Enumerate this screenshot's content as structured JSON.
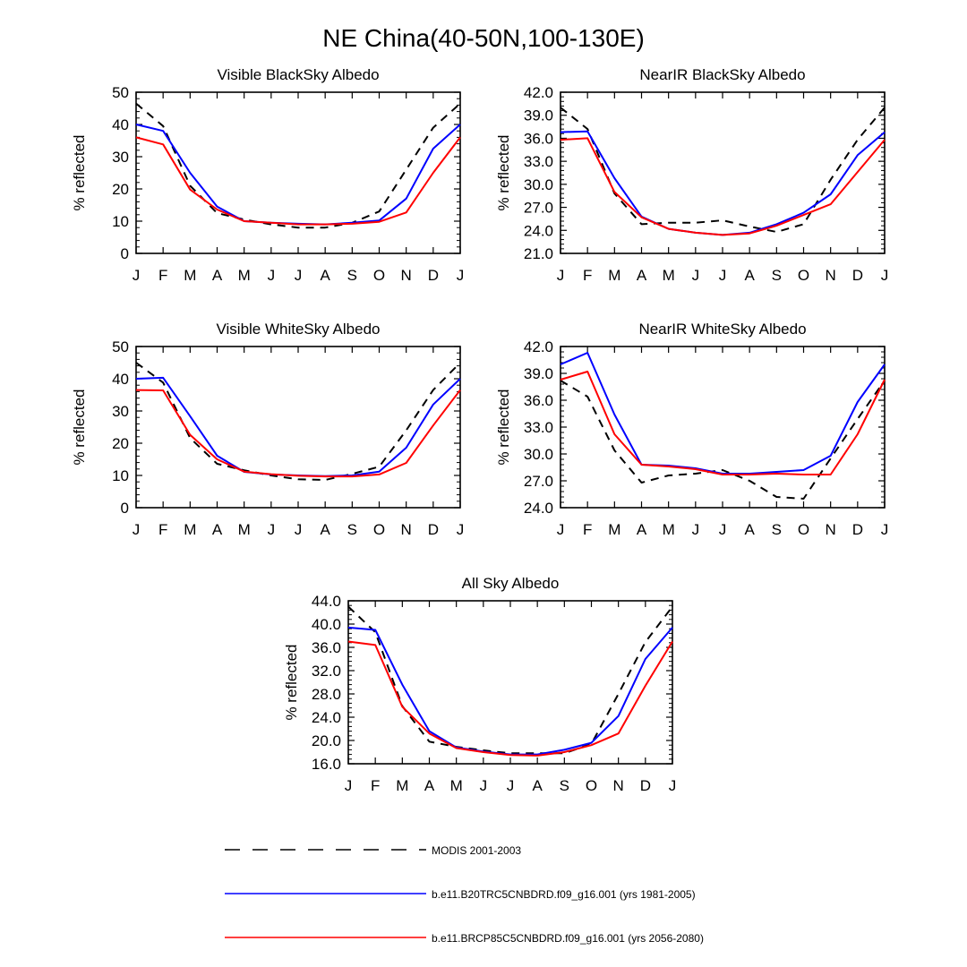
{
  "figure_title": "NE China(40-50N,100-130E)",
  "colors": {
    "modis": "#000000",
    "b20tr": "#0000ff",
    "brcp85": "#ff0000"
  },
  "legend": [
    {
      "label": "MODIS 2001-2003",
      "style": "dashed",
      "color": "#000000"
    },
    {
      "label": "b.e11.B20TRC5CNBDRD.f09_g16.001 (yrs 1981-2005)",
      "style": "solid",
      "color": "#0000ff"
    },
    {
      "label": "b.e11.BRCP85C5CNBDRD.f09_g16.001 (yrs 2056-2080)",
      "style": "solid",
      "color": "#ff0000"
    }
  ],
  "chart_data": [
    {
      "type": "line",
      "title": "Visible BlackSky Albedo",
      "xlabel": "",
      "ylabel": "% reflected",
      "categories": [
        "J",
        "F",
        "M",
        "A",
        "M",
        "J",
        "J",
        "A",
        "S",
        "O",
        "N",
        "D",
        "J"
      ],
      "ylim": [
        0,
        50
      ],
      "yticks": [
        "0",
        "10",
        "20",
        "30",
        "40",
        "50"
      ],
      "series": [
        {
          "name": "MODIS 2001-2003",
          "values": [
            46.5,
            39.5,
            21.0,
            12.5,
            10.5,
            9.0,
            8.0,
            8.0,
            9.5,
            13.0,
            26.0,
            39.0,
            46.5
          ]
        },
        {
          "name": "b.e11.B20TRC5CNBDRD.f09_g16.001 (yrs 1981-2005)",
          "values": [
            40.0,
            38.0,
            25.0,
            14.5,
            10.0,
            9.5,
            9.2,
            9.0,
            9.5,
            10.2,
            17.0,
            32.5,
            40.0
          ]
        },
        {
          "name": "b.e11.BRCP85C5CNBDRD.f09_g16.001 (yrs 2056-2080)",
          "values": [
            36.0,
            33.8,
            19.8,
            13.6,
            10.0,
            9.5,
            9.0,
            9.0,
            9.2,
            9.8,
            12.7,
            25.0,
            36.0
          ]
        }
      ]
    },
    {
      "type": "line",
      "title": "NearIR BlackSky Albedo",
      "xlabel": "",
      "ylabel": "% reflected",
      "categories": [
        "J",
        "F",
        "M",
        "A",
        "M",
        "J",
        "J",
        "A",
        "S",
        "O",
        "N",
        "D",
        "J"
      ],
      "ylim": [
        21,
        42
      ],
      "yticks": [
        "21.0",
        "24.0",
        "27.0",
        "30.0",
        "33.0",
        "36.0",
        "39.0",
        "42.0"
      ],
      "series": [
        {
          "name": "MODIS 2001-2003",
          "values": [
            40.0,
            37.2,
            28.8,
            24.8,
            25.0,
            25.0,
            25.3,
            24.5,
            23.8,
            24.8,
            30.6,
            35.8,
            40.0
          ]
        },
        {
          "name": "b.e11.B20TRC5CNBDRD.f09_g16.001 (yrs 1981-2005)",
          "values": [
            36.8,
            36.9,
            30.8,
            25.8,
            24.2,
            23.7,
            23.4,
            23.7,
            24.8,
            26.3,
            28.7,
            33.8,
            36.8
          ]
        },
        {
          "name": "b.e11.BRCP85C5CNBDRD.f09_g16.001 (yrs 2056-2080)",
          "values": [
            35.8,
            36.0,
            29.0,
            25.7,
            24.2,
            23.7,
            23.4,
            23.6,
            24.6,
            26.0,
            27.4,
            31.6,
            35.8
          ]
        }
      ]
    },
    {
      "type": "line",
      "title": "Visible WhiteSky Albedo",
      "xlabel": "",
      "ylabel": "% reflected",
      "categories": [
        "J",
        "F",
        "M",
        "A",
        "M",
        "J",
        "J",
        "A",
        "S",
        "O",
        "N",
        "D",
        "J"
      ],
      "ylim": [
        0,
        50
      ],
      "yticks": [
        "0",
        "10",
        "20",
        "30",
        "40",
        "50"
      ],
      "series": [
        {
          "name": "MODIS 2001-2003",
          "values": [
            45.0,
            38.8,
            21.6,
            13.6,
            11.6,
            10.0,
            8.8,
            8.6,
            10.5,
            12.7,
            24.0,
            36.5,
            45.0
          ]
        },
        {
          "name": "b.e11.B20TRC5CNBDRD.f09_g16.001 (yrs 1981-2005)",
          "values": [
            40.0,
            40.3,
            28.4,
            16.1,
            11.1,
            10.3,
            10.0,
            9.8,
            10.0,
            11.2,
            18.6,
            32.0,
            40.0
          ]
        },
        {
          "name": "b.e11.BRCP85C5CNBDRD.f09_g16.001 (yrs 2056-2080)",
          "values": [
            36.5,
            36.4,
            22.6,
            15.0,
            11.2,
            10.4,
            9.9,
            9.7,
            9.7,
            10.3,
            13.9,
            25.5,
            36.5
          ]
        }
      ]
    },
    {
      "type": "line",
      "title": "NearIR WhiteSky Albedo",
      "xlabel": "",
      "ylabel": "% reflected",
      "categories": [
        "J",
        "F",
        "M",
        "A",
        "M",
        "J",
        "J",
        "A",
        "S",
        "O",
        "N",
        "D",
        "J"
      ],
      "ylim": [
        24,
        42
      ],
      "yticks": [
        "24.0",
        "27.0",
        "30.0",
        "33.0",
        "36.0",
        "39.0",
        "42.0"
      ],
      "series": [
        {
          "name": "MODIS 2001-2003",
          "values": [
            38.2,
            36.4,
            30.4,
            26.8,
            27.6,
            27.8,
            28.2,
            27.0,
            25.2,
            25.0,
            29.5,
            33.9,
            38.2
          ]
        },
        {
          "name": "b.e11.B20TRC5CNBDRD.f09_g16.001 (yrs 1981-2005)",
          "values": [
            40.0,
            41.3,
            34.4,
            28.8,
            28.7,
            28.4,
            27.8,
            27.8,
            28.0,
            28.2,
            29.8,
            35.8,
            40.0
          ]
        },
        {
          "name": "b.e11.BRCP85C5CNBDRD.f09_g16.001 (yrs 2056-2080)",
          "values": [
            38.3,
            39.2,
            32.2,
            28.8,
            28.6,
            28.3,
            27.7,
            27.7,
            27.8,
            27.7,
            27.7,
            32.2,
            38.3
          ]
        }
      ]
    },
    {
      "type": "line",
      "title": "All Sky Albedo",
      "xlabel": "",
      "ylabel": "% reflected",
      "categories": [
        "J",
        "F",
        "M",
        "A",
        "M",
        "J",
        "J",
        "A",
        "S",
        "O",
        "N",
        "D",
        "J"
      ],
      "ylim": [
        16,
        44
      ],
      "yticks": [
        "16.0",
        "20.0",
        "24.0",
        "28.0",
        "32.0",
        "36.0",
        "40.0",
        "44.0"
      ],
      "series": [
        {
          "name": "MODIS 2001-2003",
          "values": [
            43.0,
            38.6,
            25.9,
            19.8,
            18.9,
            18.3,
            17.8,
            17.8,
            17.8,
            19.4,
            28.0,
            36.9,
            43.0
          ]
        },
        {
          "name": "b.e11.B20TRC5CNBDRD.f09_g16.001 (yrs 1981-2005)",
          "values": [
            39.4,
            39.0,
            29.6,
            21.6,
            18.8,
            18.1,
            17.6,
            17.6,
            18.4,
            19.6,
            24.2,
            34.0,
            39.4
          ]
        },
        {
          "name": "b.e11.BRCP85C5CNBDRD.f09_g16.001 (yrs 2056-2080)",
          "values": [
            37.0,
            36.4,
            25.8,
            21.2,
            18.7,
            18.0,
            17.5,
            17.4,
            18.0,
            19.2,
            21.2,
            29.4,
            37.0
          ]
        }
      ]
    }
  ]
}
